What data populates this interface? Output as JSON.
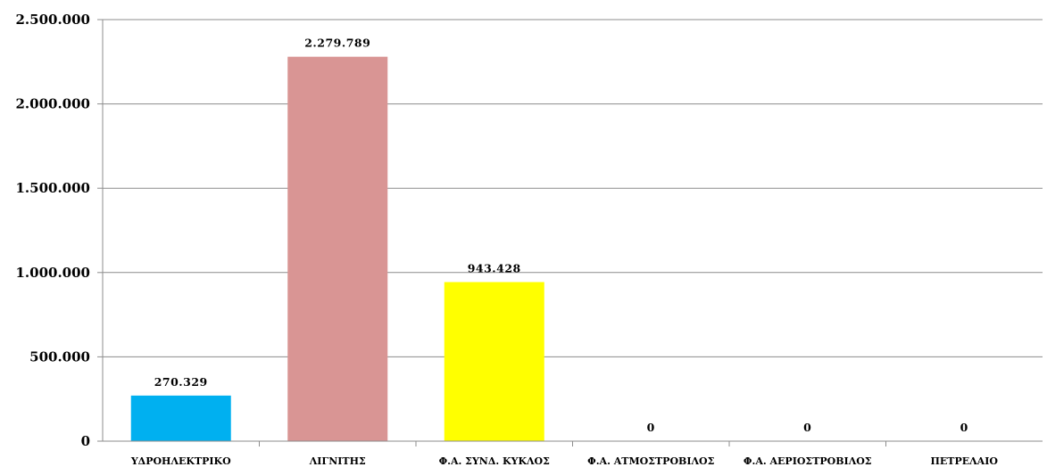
{
  "chart_data": {
    "type": "bar",
    "categories": [
      "ΥΔΡΟΗΛΕΚΤΡΙΚΟ",
      "ΛΙΓΝΙΤΗΣ",
      "Φ.Α. ΣΥΝΔ. ΚΥΚΛΟΣ",
      "Φ.Α. ΑΤΜΟΣΤΡΟΒΙΛΟΣ",
      "Φ.Α. ΑΕΡΙΟΣΤΡΟΒΙΛΟΣ",
      "ΠΕΤΡΕΛΑΙΟ"
    ],
    "values": [
      270329,
      2279789,
      943428,
      0,
      0,
      0
    ],
    "value_labels": [
      "270.329",
      "2.279.789",
      "943.428",
      "0",
      "0",
      "0"
    ],
    "colors": [
      "#00b0f0",
      "#d99594",
      "#ffff00",
      "#ffffff",
      "#ffffff",
      "#ffffff"
    ],
    "ylim": [
      0,
      2500000
    ],
    "yticks": [
      0,
      500000,
      1000000,
      1500000,
      2000000,
      2500000
    ],
    "ytick_labels": [
      "0",
      "500.000",
      "1.000.000",
      "1.500.000",
      "2.000.000",
      "2.500.000"
    ],
    "grid": true,
    "title": "",
    "xlabel": "",
    "ylabel": ""
  }
}
